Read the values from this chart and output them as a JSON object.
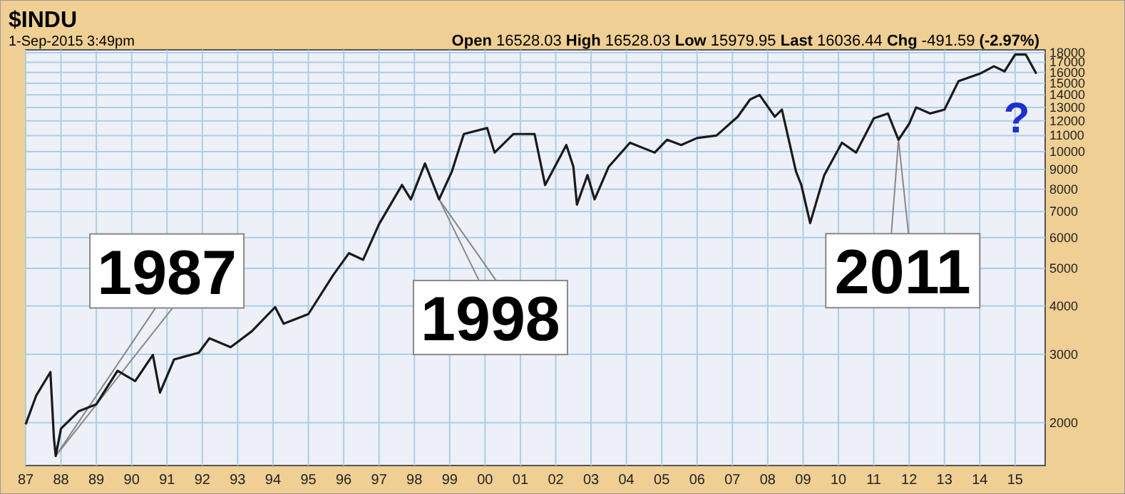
{
  "chart_data": {
    "type": "line",
    "title": "$INDU",
    "subtitle": "1-Sep-2015 3:49pm",
    "annotations": [
      "Open 16528.03 High 16528.03 Low 15979.95 Last 16036.44 Chg -491.59 (-2.97%)",
      "?",
      {
        "text": "1987",
        "x": 1987.85,
        "y": 1640
      },
      {
        "text": "1998",
        "x": 1998.7,
        "y": 7530
      },
      {
        "text": "2011",
        "x": 2011.7,
        "y": 10730
      }
    ],
    "log": "y",
    "grid": true,
    "xlim": [
      1987,
      2015.85
    ],
    "xticks": [
      {
        "value": 1987,
        "label": "87"
      },
      {
        "value": 1988,
        "label": "88"
      },
      {
        "value": 1989,
        "label": "89"
      },
      {
        "value": 1990,
        "label": "90"
      },
      {
        "value": 1991,
        "label": "91"
      },
      {
        "value": 1992,
        "label": "92"
      },
      {
        "value": 1993,
        "label": "93"
      },
      {
        "value": 1994,
        "label": "94"
      },
      {
        "value": 1995,
        "label": "95"
      },
      {
        "value": 1996,
        "label": "96"
      },
      {
        "value": 1997,
        "label": "97"
      },
      {
        "value": 1998,
        "label": "98"
      },
      {
        "value": 1999,
        "label": "99"
      },
      {
        "value": 2000,
        "label": "00"
      },
      {
        "value": 2001,
        "label": "01"
      },
      {
        "value": 2002,
        "label": "02"
      },
      {
        "value": 2003,
        "label": "03"
      },
      {
        "value": 2004,
        "label": "04"
      },
      {
        "value": 2005,
        "label": "05"
      },
      {
        "value": 2006,
        "label": "06"
      },
      {
        "value": 2007,
        "label": "07"
      },
      {
        "value": 2008,
        "label": "08"
      },
      {
        "value": 2009,
        "label": "09"
      },
      {
        "value": 2010,
        "label": "10"
      },
      {
        "value": 2011,
        "label": "11"
      },
      {
        "value": 2012,
        "label": "12"
      },
      {
        "value": 2013,
        "label": "13"
      },
      {
        "value": 2014,
        "label": "14"
      },
      {
        "value": 2015,
        "label": "15"
      }
    ],
    "ylim": [
      1550,
      18300
    ],
    "yticks": [
      2000,
      3000,
      4000,
      5000,
      6000,
      7000,
      8000,
      9000,
      10000,
      11000,
      12000,
      13000,
      14000,
      15000,
      16000,
      17000,
      18000
    ],
    "x": [
      1987.0,
      1987.3,
      1987.7,
      1987.8,
      1987.85,
      1988.0,
      1988.5,
      1989.0,
      1989.6,
      1990.1,
      1990.6,
      1990.8,
      1991.2,
      1991.9,
      1992.2,
      1992.8,
      1993.4,
      1994.06,
      1994.3,
      1995.0,
      1995.7,
      1996.15,
      1996.55,
      1997.0,
      1997.65,
      1997.9,
      1998.3,
      1998.7,
      1999.06,
      1999.4,
      2000.06,
      2000.27,
      2000.8,
      2001.4,
      2001.7,
      2002.3,
      2002.5,
      2002.6,
      2002.9,
      2003.1,
      2003.5,
      2004.1,
      2004.8,
      2005.15,
      2005.55,
      2006.0,
      2006.55,
      2007.15,
      2007.5,
      2007.77,
      2008.2,
      2008.4,
      2008.8,
      2008.95,
      2009.2,
      2009.6,
      2010.1,
      2010.5,
      2011.0,
      2011.4,
      2011.7,
      2012.0,
      2012.2,
      2012.6,
      2013.0,
      2013.4,
      2014.0,
      2014.4,
      2014.7,
      2015.0,
      2015.3,
      2015.6
    ],
    "series": [
      {
        "color": "#1a1a1a",
        "values": [
          1980,
          2350,
          2700,
          1820,
          1640,
          1930,
          2140,
          2230,
          2720,
          2560,
          2990,
          2390,
          2910,
          3030,
          3300,
          3130,
          3440,
          3970,
          3600,
          3810,
          4800,
          5470,
          5260,
          6500,
          8200,
          7530,
          9320,
          7530,
          8880,
          11100,
          11500,
          9940,
          11100,
          11100,
          8200,
          10400,
          9140,
          7300,
          8700,
          7530,
          9140,
          10540,
          9940,
          10730,
          10400,
          10840,
          11000,
          12300,
          13630,
          14000,
          12300,
          12830,
          8880,
          8200,
          6540,
          8700,
          10540,
          9940,
          12180,
          12540,
          10730,
          11790,
          13000,
          12540,
          12830,
          15200,
          15880,
          16600,
          16100,
          17800,
          17800,
          15880
        ]
      }
    ]
  }
}
